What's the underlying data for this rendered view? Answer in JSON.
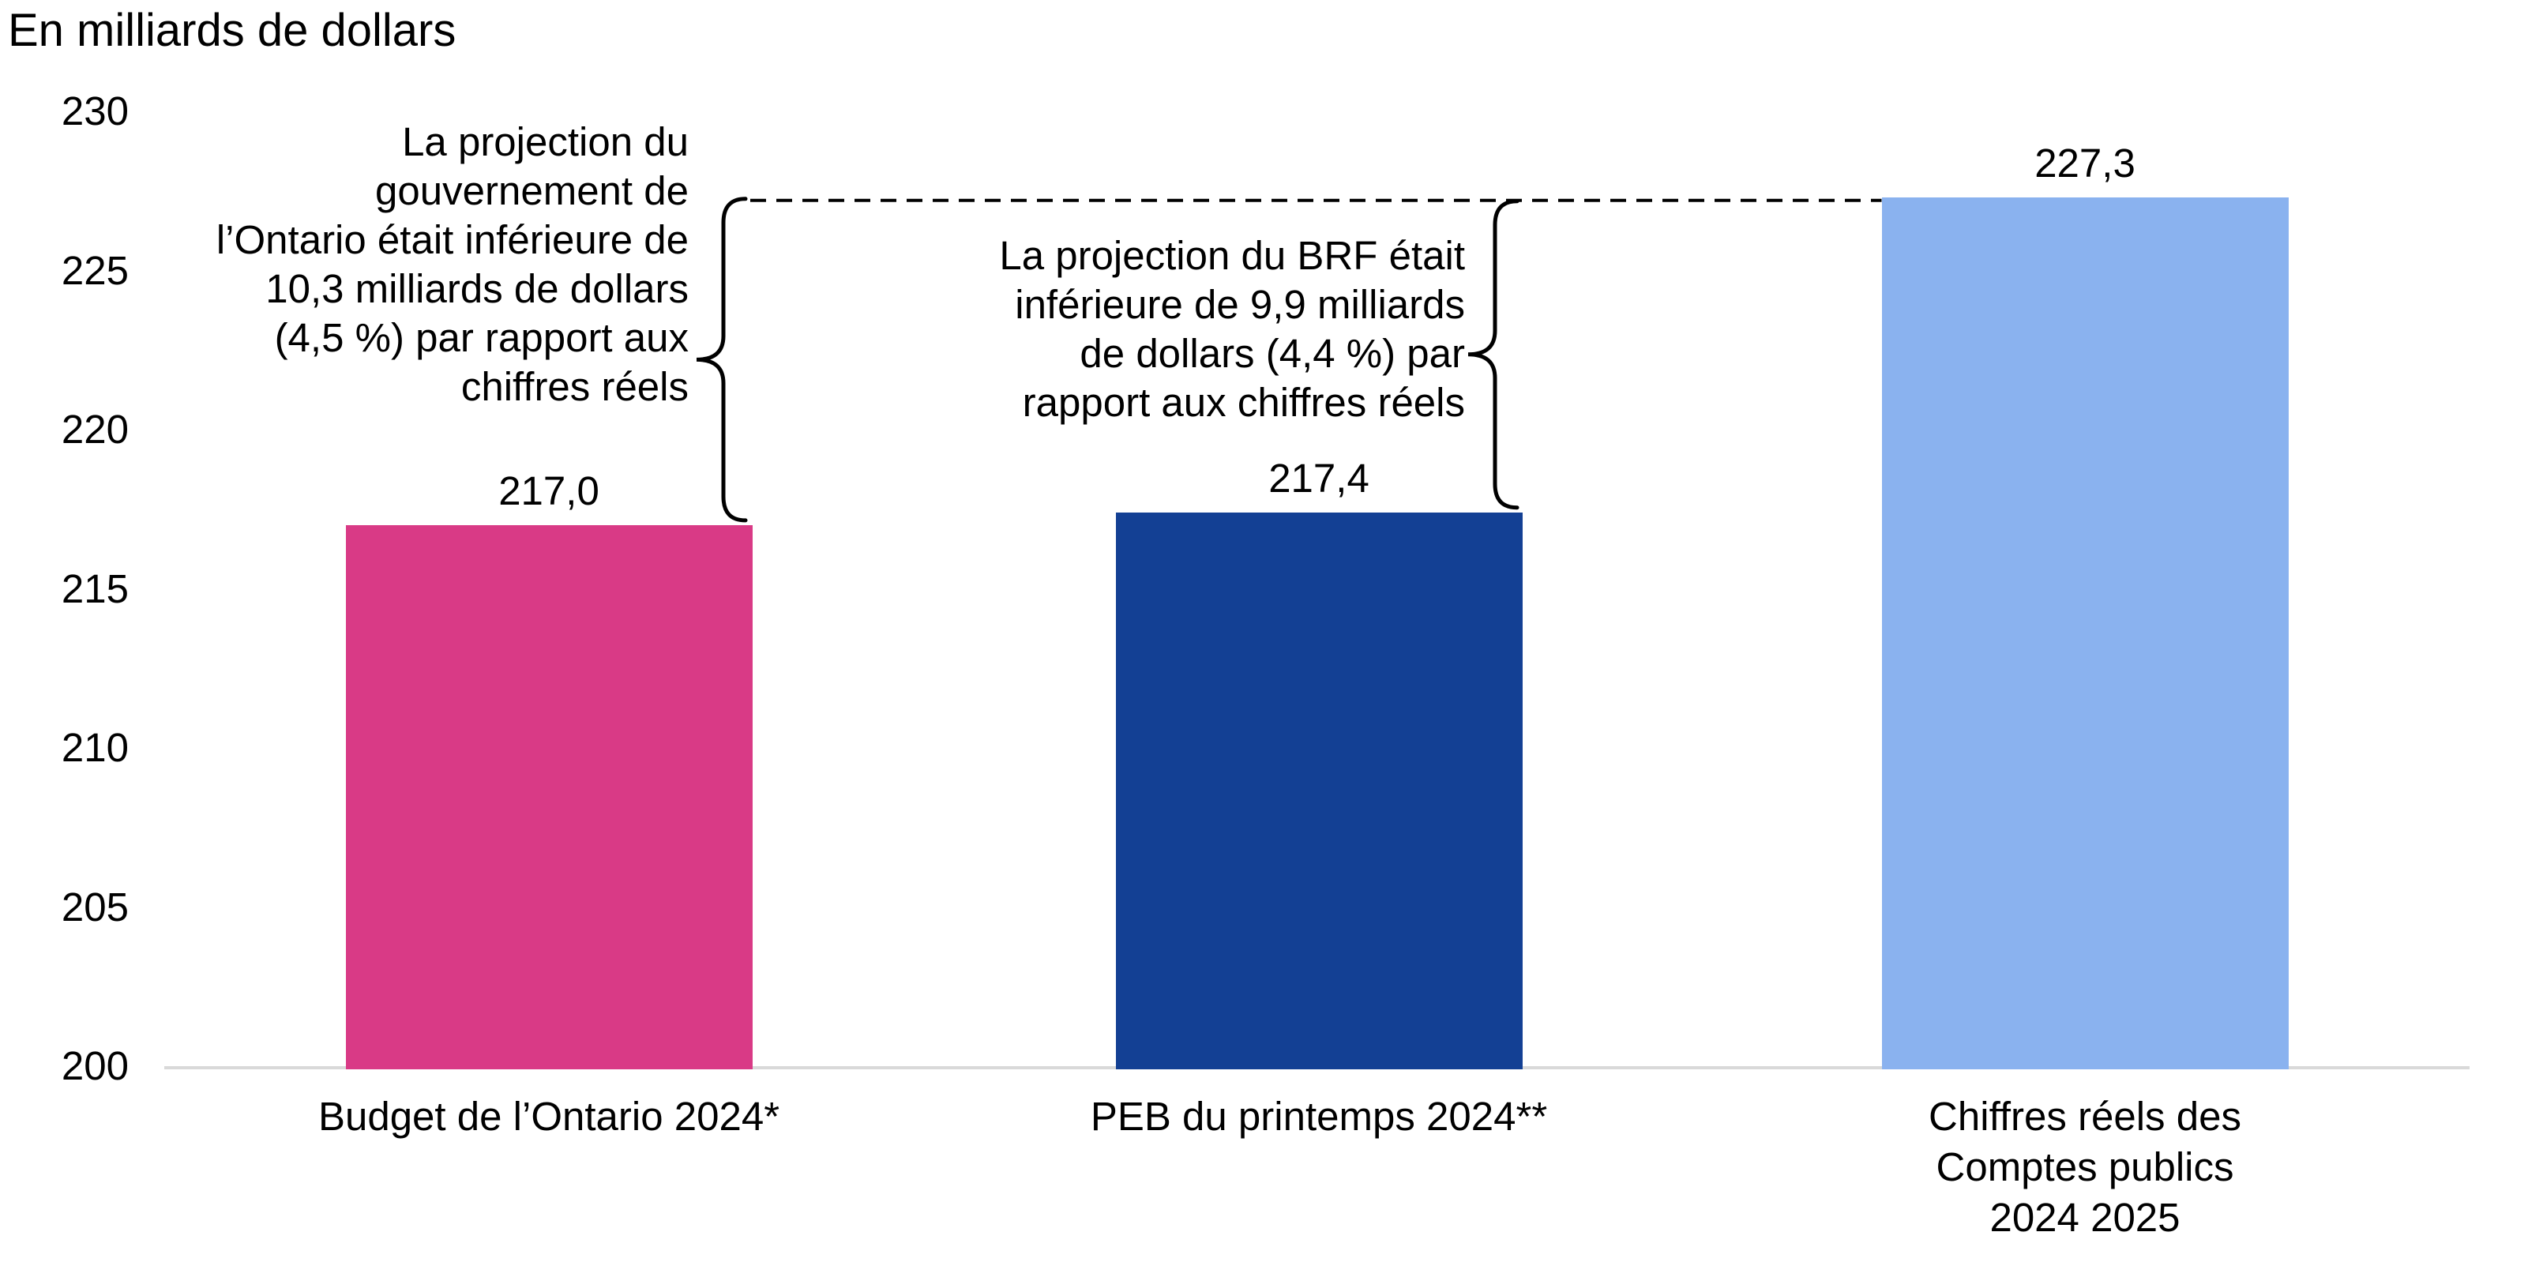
{
  "chart_data": {
    "type": "bar",
    "title": "En milliards de dollars",
    "categories": [
      "Budget de l’Ontario 2024*",
      "PEB du printemps 2024**",
      "Chiffres réels des\nComptes publics\n2024 2025"
    ],
    "values": [
      217.0,
      217.4,
      227.3
    ],
    "value_labels": [
      "217,0",
      "217,4",
      "227,3"
    ],
    "bar_colors": [
      "#D93A86",
      "#134094",
      "#8AB2EF"
    ],
    "ylim": [
      200,
      230
    ],
    "yticks": [
      230,
      225,
      220,
      215,
      210,
      205,
      200
    ],
    "ytick_labels": [
      "230",
      "225",
      "220",
      "215",
      "210",
      "205",
      "200"
    ],
    "grid": false,
    "legend": false,
    "reference_line": {
      "value": 227.3,
      "style": "dashed"
    },
    "annotations": [
      {
        "text": "La projection du\ngouvernement de\nl’Ontario était inférieure de\n10,3 milliards de dollars\n(4,5 %) par rapport aux\nchiffres réels"
      },
      {
        "text": "La projection du BRF était\ninférieure de 9,9 milliards\nde dollars (4,4 %) par\nrapport aux chiffres réels"
      }
    ]
  },
  "colors": {
    "axis_line": "#D9D9D9",
    "text": "#000000",
    "annotation_line": "#000000",
    "background": "#FFFFFF"
  }
}
